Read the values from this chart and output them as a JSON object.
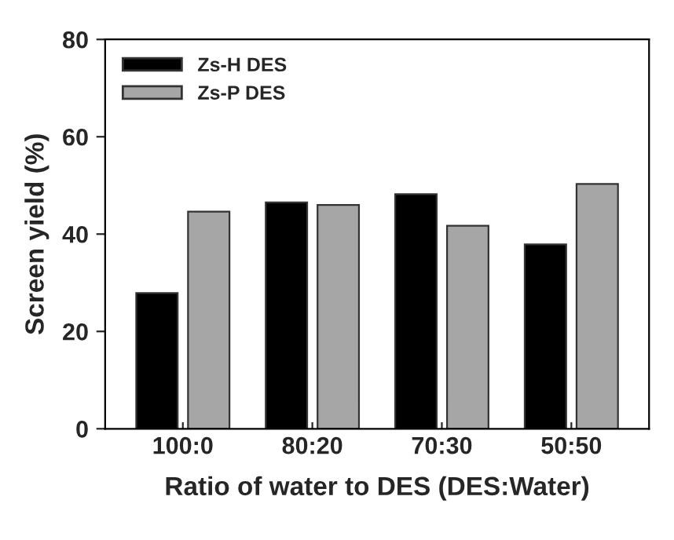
{
  "chart_data": {
    "type": "bar",
    "xlabel": "Ratio of water to DES (DES:Water)",
    "ylabel": "Screen yield (%)",
    "categories": [
      "100:0",
      "80:20",
      "70:30",
      "50:50"
    ],
    "series": [
      {
        "name": "Zs-H DES",
        "color": "#000000",
        "values": [
          27.9,
          46.5,
          48.2,
          37.9
        ]
      },
      {
        "name": "Zs-P DES",
        "color": "#a6a6a6",
        "values": [
          44.6,
          46.0,
          41.7,
          50.3
        ]
      }
    ],
    "ylim": [
      0,
      80
    ],
    "yticks": [
      0,
      20,
      40,
      60,
      80
    ],
    "grid": false,
    "legend": "top left"
  }
}
